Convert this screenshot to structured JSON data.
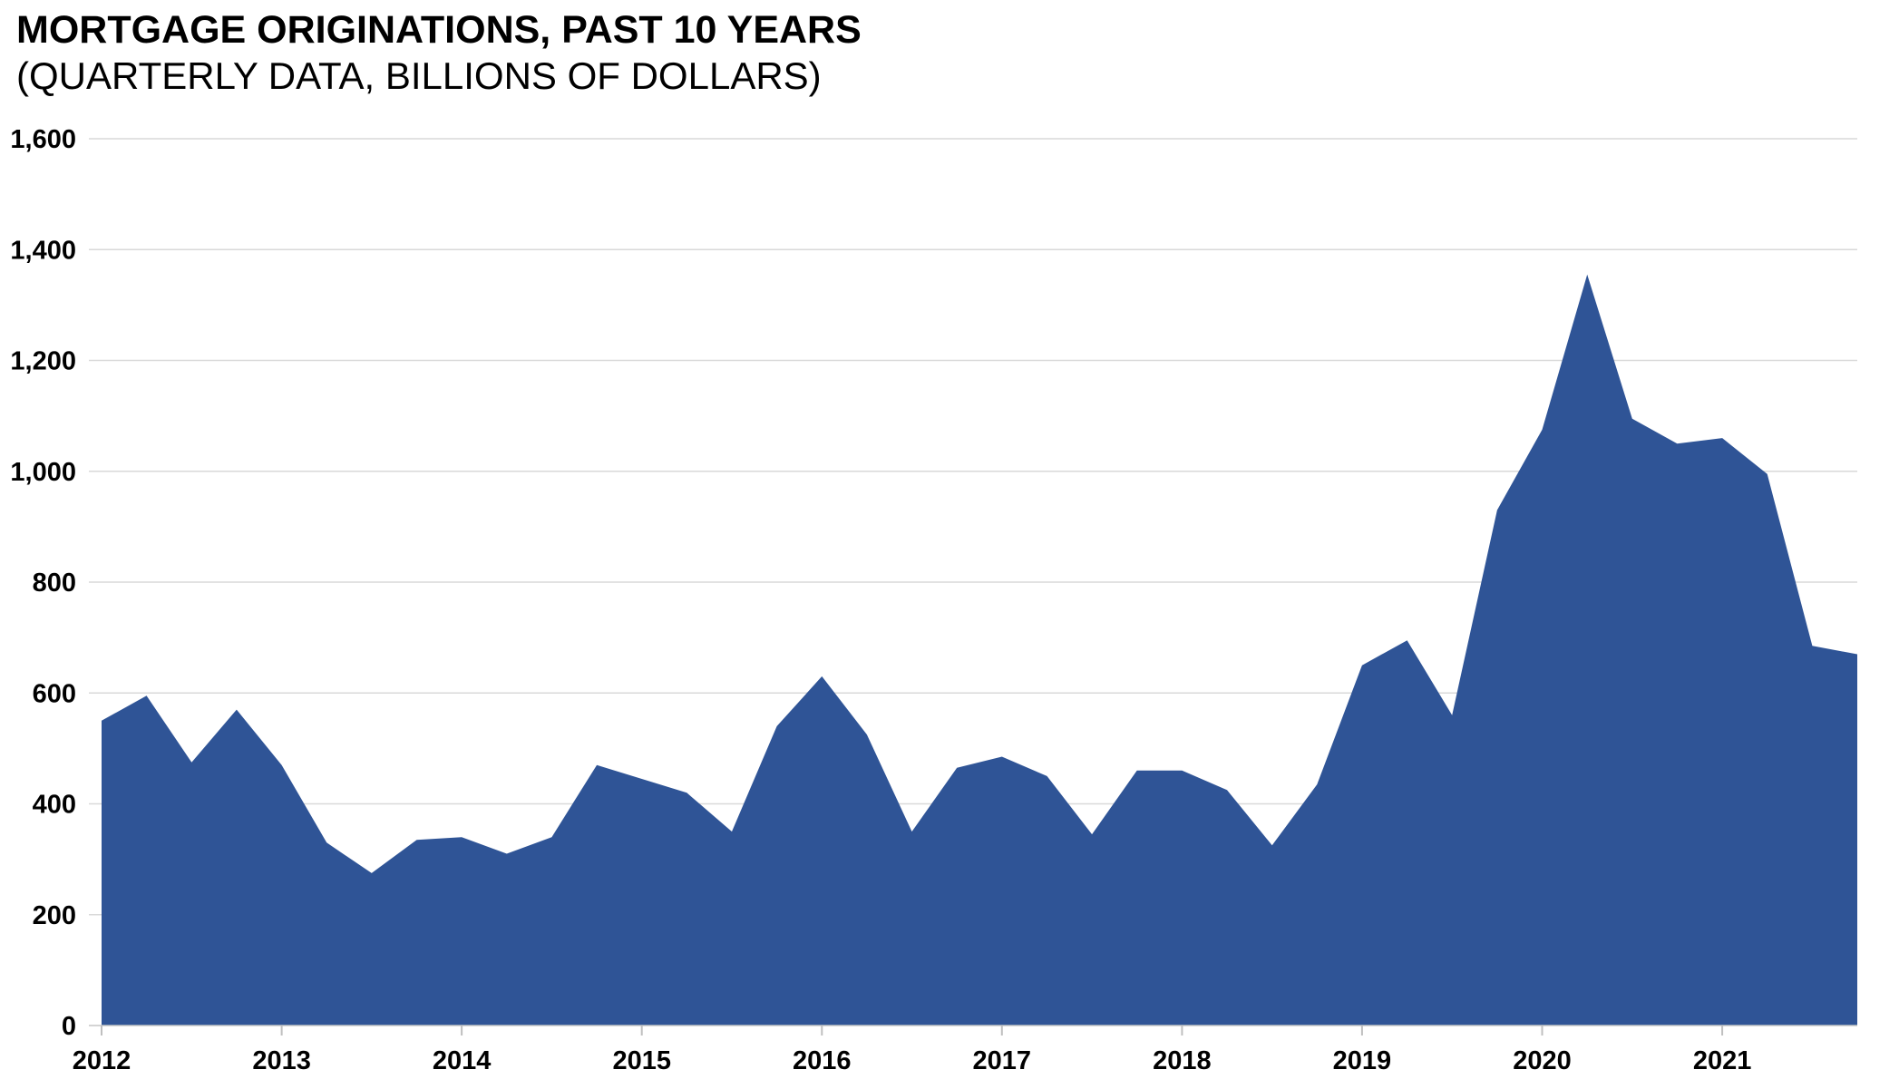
{
  "header": {
    "title": "MORTGAGE ORIGINATIONS, PAST 10 YEARS",
    "subtitle": "(QUARTERLY DATA, BILLIONS OF DOLLARS)"
  },
  "chart_data": {
    "type": "area",
    "title": "MORTGAGE ORIGINATIONS, PAST 10 YEARS",
    "subtitle": "(QUARTERLY DATA, BILLIONS OF DOLLARS)",
    "unit": "billions of dollars",
    "frequency": "quarterly",
    "x_quarters": [
      "2012Q1",
      "2012Q2",
      "2012Q3",
      "2012Q4",
      "2013Q1",
      "2013Q2",
      "2013Q3",
      "2013Q4",
      "2014Q1",
      "2014Q2",
      "2014Q3",
      "2014Q4",
      "2015Q1",
      "2015Q2",
      "2015Q3",
      "2015Q4",
      "2016Q1",
      "2016Q2",
      "2016Q3",
      "2016Q4",
      "2017Q1",
      "2017Q2",
      "2017Q3",
      "2017Q4",
      "2018Q1",
      "2018Q2",
      "2018Q3",
      "2018Q4",
      "2019Q1",
      "2019Q2",
      "2019Q3",
      "2019Q4",
      "2020Q1",
      "2020Q2",
      "2020Q3",
      "2020Q4",
      "2021Q1",
      "2021Q2",
      "2021Q3",
      "2021Q4"
    ],
    "values": [
      550,
      595,
      475,
      570,
      470,
      330,
      275,
      335,
      340,
      310,
      340,
      470,
      445,
      420,
      350,
      540,
      630,
      525,
      350,
      465,
      485,
      450,
      345,
      460,
      460,
      425,
      325,
      435,
      650,
      695,
      560,
      930,
      1075,
      1355,
      1095,
      1050,
      1060,
      995,
      685,
      670
    ],
    "x_year_labels": [
      "2012",
      "2013",
      "2014",
      "2015",
      "2016",
      "2017",
      "2018",
      "2019",
      "2020",
      "2021"
    ],
    "y_tick_labels": [
      "0",
      "200",
      "400",
      "600",
      "800",
      "1,000",
      "1,200",
      "1,400",
      "1,600"
    ],
    "y_tick_values": [
      0,
      200,
      400,
      600,
      800,
      1000,
      1200,
      1400,
      1600
    ],
    "ylim": [
      0,
      1600
    ],
    "grid": "horizontal",
    "legend": "none",
    "colors": {
      "area_fill": "#2F5496",
      "gridline": "#D9D9D9",
      "axis_line": "#C6C6C6",
      "tick_mark": "#BFBFBF",
      "text": "#000000"
    }
  }
}
